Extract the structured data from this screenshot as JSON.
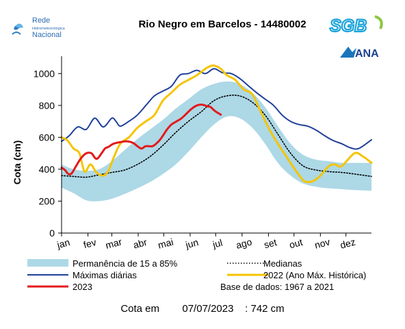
{
  "logos": {
    "rhn": {
      "line1": "Rede",
      "line2": "Hidrometeorológica",
      "line3": "Nacional"
    },
    "sgb": "SGB",
    "ana": "ANA"
  },
  "chart_data": {
    "type": "line",
    "title": "Rio Negro em Barcelos - 14480002",
    "ylabel": "Cota (cm)",
    "xlabel": "",
    "ylim": [
      0,
      1100
    ],
    "yticks": [
      0,
      200,
      400,
      600,
      800,
      1000
    ],
    "x_domain_days": [
      1,
      365
    ],
    "grid": false,
    "legend_position": "bottom",
    "months": [
      {
        "label": "jan",
        "day": 1
      },
      {
        "label": "fev",
        "day": 32
      },
      {
        "label": "mar",
        "day": 60
      },
      {
        "label": "abr",
        "day": 91
      },
      {
        "label": "mai",
        "day": 121
      },
      {
        "label": "jun",
        "day": 152
      },
      {
        "label": "jul",
        "day": 182
      },
      {
        "label": "ago",
        "day": 213
      },
      {
        "label": "set",
        "day": 244
      },
      {
        "label": "out",
        "day": 274
      },
      {
        "label": "nov",
        "day": 305
      },
      {
        "label": "dez",
        "day": 335
      }
    ],
    "band": {
      "name": "Permanência de 15 a 85%",
      "color": "#add8e6",
      "x": [
        1,
        15,
        30,
        45,
        60,
        75,
        90,
        105,
        120,
        135,
        150,
        165,
        180,
        195,
        210,
        225,
        240,
        255,
        270,
        285,
        300,
        315,
        330,
        345,
        365
      ],
      "lower": [
        285,
        250,
        205,
        200,
        215,
        245,
        280,
        320,
        370,
        430,
        510,
        600,
        680,
        730,
        720,
        660,
        560,
        440,
        360,
        310,
        290,
        280,
        275,
        270,
        265
      ],
      "upper": [
        430,
        400,
        390,
        400,
        450,
        520,
        590,
        650,
        710,
        780,
        840,
        900,
        935,
        950,
        935,
        880,
        790,
        670,
        560,
        490,
        460,
        450,
        440,
        440,
        440
      ]
    },
    "series": [
      {
        "name": "Medianas",
        "color": "#000000",
        "style": "dotted",
        "x": [
          1,
          15,
          30,
          45,
          60,
          75,
          90,
          105,
          120,
          135,
          150,
          165,
          180,
          195,
          210,
          225,
          240,
          255,
          270,
          285,
          300,
          315,
          330,
          345,
          365
        ],
        "values": [
          360,
          355,
          350,
          365,
          380,
          395,
          430,
          480,
          550,
          630,
          700,
          760,
          830,
          860,
          860,
          820,
          740,
          620,
          500,
          420,
          395,
          385,
          380,
          370,
          355
        ]
      },
      {
        "name": "Máximas diárias",
        "color": "#1f3f99",
        "style": "solid",
        "x": [
          1,
          10,
          20,
          30,
          40,
          50,
          60,
          65,
          70,
          80,
          90,
          100,
          110,
          120,
          130,
          140,
          150,
          160,
          170,
          180,
          190,
          200,
          210,
          220,
          230,
          240,
          250,
          260,
          270,
          280,
          290,
          300,
          310,
          320,
          330,
          340,
          350,
          365
        ],
        "values": [
          575,
          610,
          665,
          650,
          720,
          665,
          720,
          700,
          670,
          700,
          740,
          800,
          860,
          890,
          920,
          990,
          1000,
          1020,
          1000,
          1030,
          1005,
          1000,
          970,
          925,
          880,
          840,
          800,
          740,
          700,
          680,
          670,
          645,
          610,
          580,
          560,
          535,
          530,
          585
        ]
      },
      {
        "name": "2022 (Ano Máx. Histórica)",
        "color": "#f5c400",
        "style": "solid",
        "x": [
          1,
          8,
          15,
          22,
          28,
          35,
          42,
          50,
          56,
          62,
          70,
          80,
          90,
          100,
          110,
          120,
          130,
          140,
          150,
          160,
          170,
          175,
          180,
          188,
          195,
          205,
          215,
          225,
          235,
          245,
          255,
          265,
          275,
          285,
          292,
          298,
          305,
          315,
          322,
          330,
          345,
          355,
          365
        ],
        "values": [
          600,
          580,
          530,
          500,
          385,
          430,
          380,
          360,
          390,
          470,
          560,
          600,
          660,
          700,
          740,
          830,
          880,
          930,
          960,
          990,
          1030,
          1045,
          1050,
          1030,
          990,
          960,
          900,
          870,
          760,
          650,
          560,
          480,
          400,
          330,
          320,
          330,
          360,
          420,
          430,
          420,
          500,
          480,
          440
        ]
      },
      {
        "name": "2023",
        "color": "#e31a1c",
        "style": "solid",
        "x": [
          1,
          5,
          9,
          13,
          18,
          24,
          30,
          36,
          42,
          48,
          52,
          56,
          62,
          70,
          78,
          85,
          90,
          95,
          100,
          108,
          115,
          120,
          125,
          130,
          136,
          142,
          148,
          154,
          160,
          166,
          172,
          176,
          180,
          184,
          188
        ],
        "values": [
          410,
          395,
          370,
          375,
          420,
          470,
          500,
          500,
          465,
          500,
          530,
          540,
          560,
          570,
          575,
          565,
          545,
          530,
          545,
          545,
          575,
          610,
          650,
          680,
          700,
          720,
          750,
          780,
          800,
          805,
          795,
          790,
          770,
          755,
          742
        ]
      }
    ],
    "legend": [
      {
        "label": "Permanência de 15 a 85%",
        "kind": "band",
        "color": "#add8e6"
      },
      {
        "label": "Medianas",
        "kind": "dotted",
        "color": "#000000"
      },
      {
        "label": "Máximas diárias",
        "kind": "line",
        "color": "#1f3f99"
      },
      {
        "label": "2022 (Ano Máx. Histórica)",
        "kind": "line",
        "color": "#f5c400"
      },
      {
        "label": "2023",
        "kind": "line",
        "color": "#e31a1c"
      }
    ],
    "annotation": "Base de dados: 1967 a 2021"
  },
  "footer": {
    "label": "Cota em",
    "date": "07/07/2023",
    "value": ": 742 cm"
  }
}
